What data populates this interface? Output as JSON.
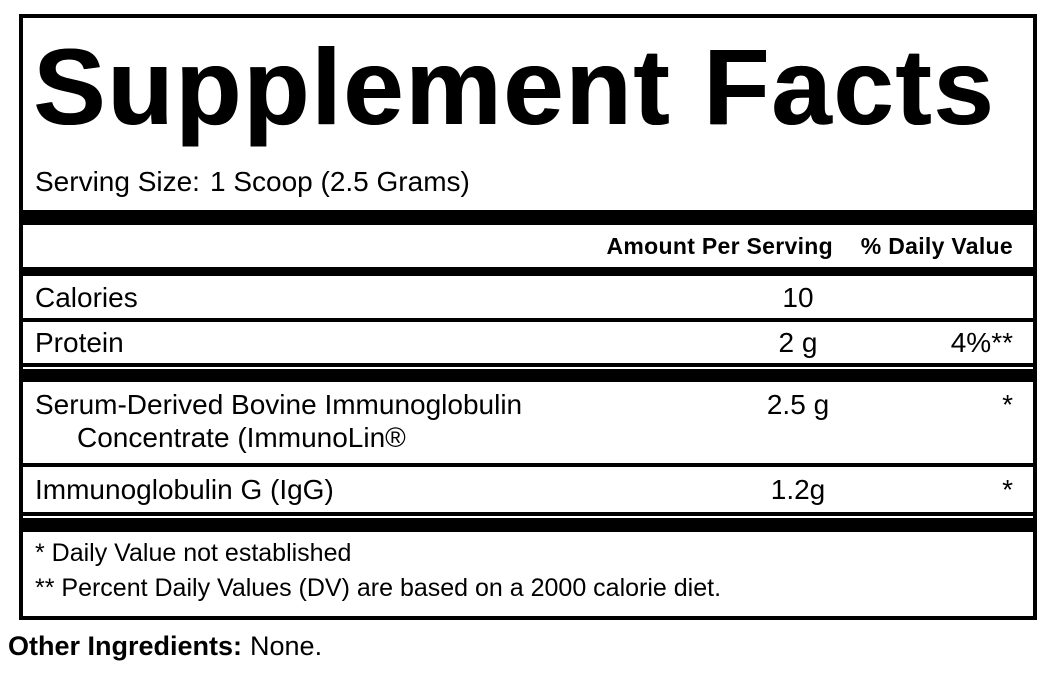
{
  "colors": {
    "ink": "#000000",
    "paper": "#ffffff"
  },
  "supplement_facts": {
    "title": "Supplement Facts",
    "serving": {
      "label": "Serving Size:",
      "value": "1 Scoop (2.5 Grams)"
    },
    "header": {
      "amount_col": "Amount Per Serving",
      "dv_col": "% Daily Value"
    },
    "rows": [
      {
        "name": "Calories",
        "amount": "10",
        "dv": ""
      },
      {
        "name": "Protein",
        "amount": "2 g",
        "dv": "4%**"
      },
      {
        "name": "Serum-Derived Bovine Immunoglobulin",
        "name_line2": "Concentrate (ImmunoLin®",
        "amount": "2.5 g",
        "dv": "*"
      },
      {
        "name": "Immunoglobulin G (IgG)",
        "amount": "1.2g",
        "dv": "*"
      }
    ],
    "footnotes": {
      "line1": "* Daily Value not established",
      "line2": "** Percent Daily Values (DV) are based on a 2000 calorie diet."
    },
    "other_ingredients": {
      "label": "Other Ingredients:",
      "value": "None."
    }
  }
}
